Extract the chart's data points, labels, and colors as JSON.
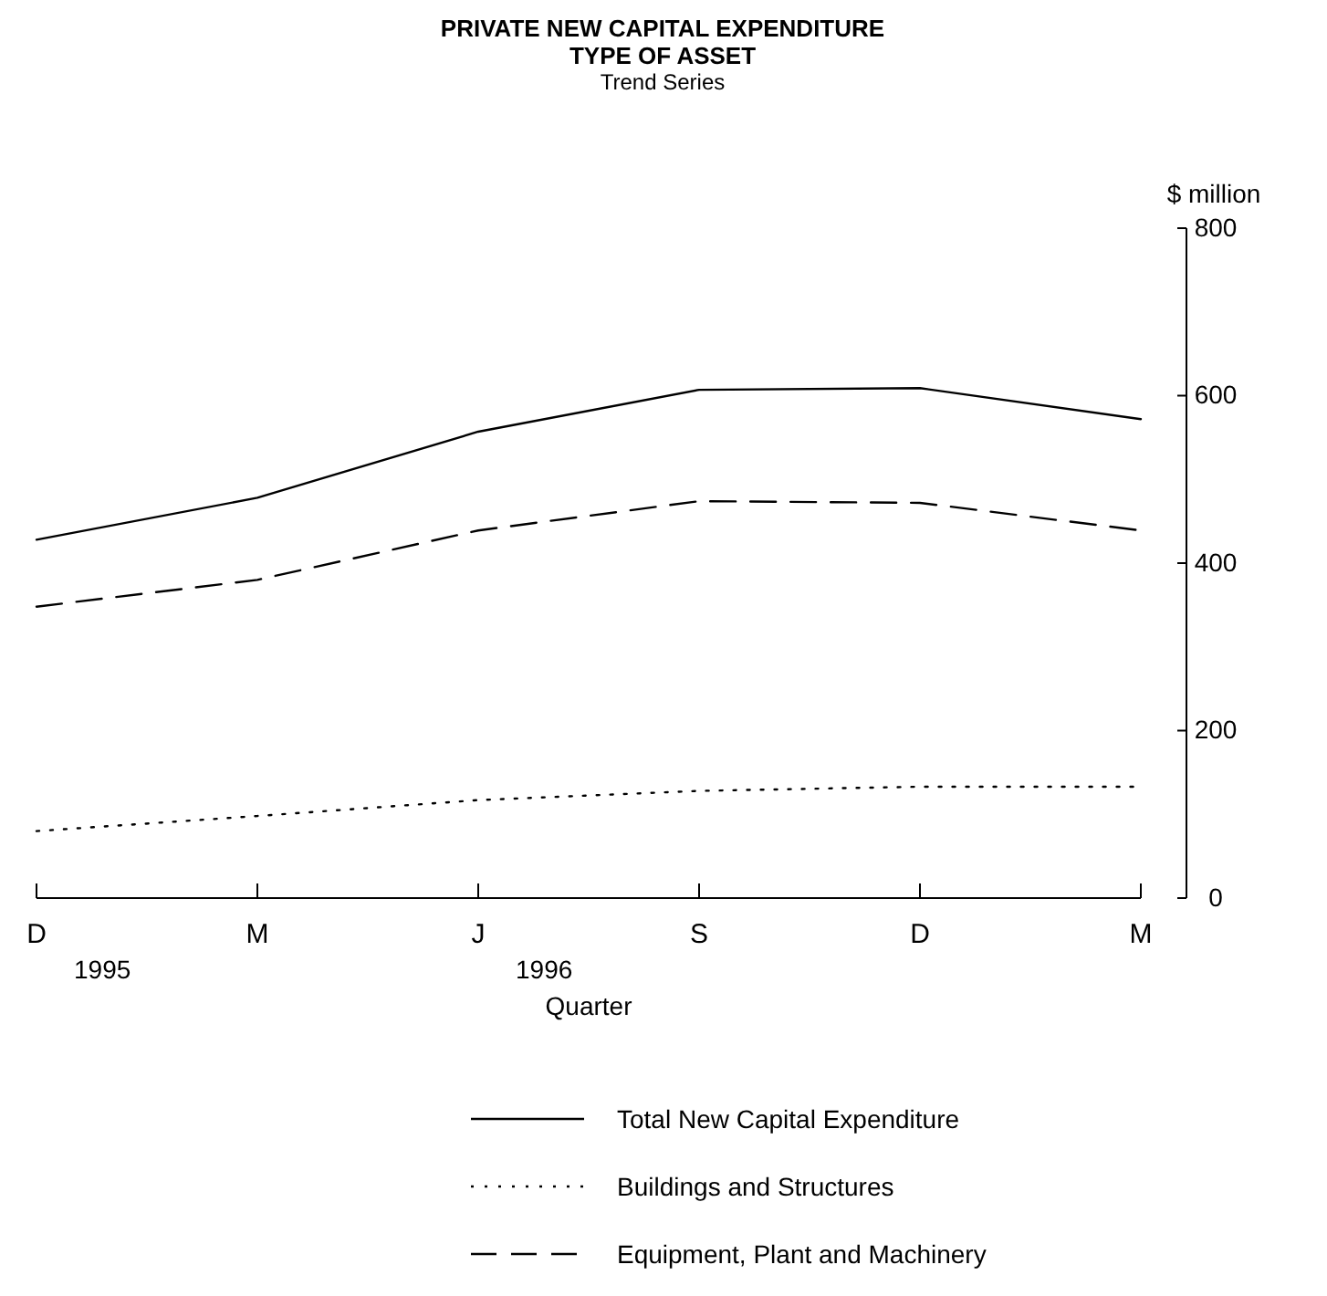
{
  "chart_data": {
    "type": "line",
    "title": "PRIVATE NEW CAPITAL EXPENDITURE",
    "subtitle": "TYPE OF ASSET\nTrend Series",
    "xlabel": "Quarter",
    "ylabel": "$ million",
    "categories": [
      "D",
      "M",
      "J",
      "S",
      "D",
      "M"
    ],
    "series": [
      {
        "name": "Total New Capital Expenditure",
        "color": "#000000",
        "line_style": "solid",
        "values": [
          428,
          478,
          557,
          607,
          609,
          572
        ]
      },
      {
        "name": "Buildings and Structures",
        "color": "#000000",
        "line_style": "dotted",
        "values": [
          80,
          98,
          117,
          128,
          133,
          133
        ]
      },
      {
        "name": "Equipment, Plant and Machinery",
        "color": "#000000",
        "line_style": "dashed",
        "values": [
          348,
          380,
          439,
          474,
          472,
          439
        ]
      }
    ],
    "ylim": [
      0,
      800
    ],
    "yticks": [
      0,
      200,
      400,
      600,
      800
    ],
    "legend": "bottom",
    "marker": "none",
    "annotations": [
      "1995",
      "1996"
    ]
  }
}
